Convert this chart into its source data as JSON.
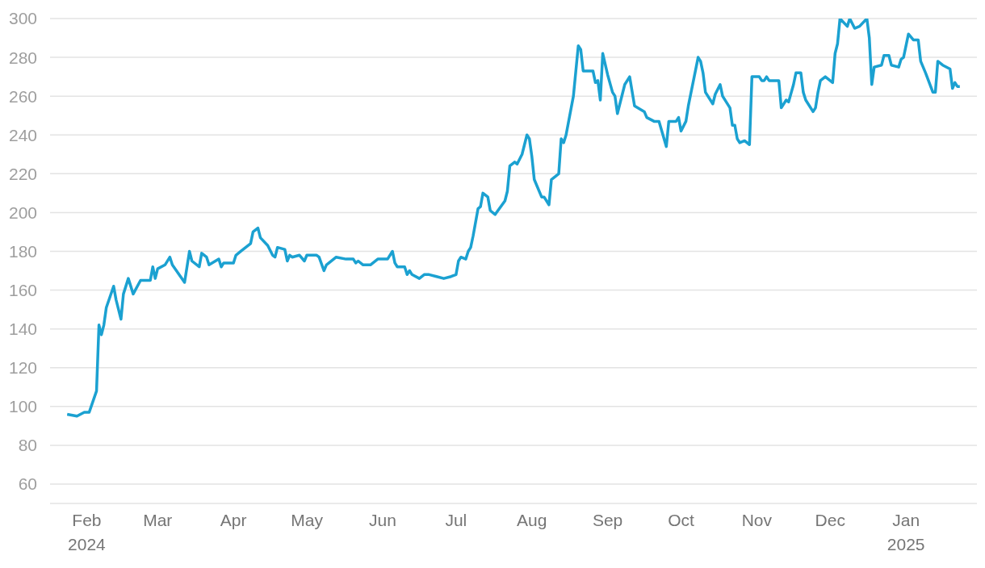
{
  "chart_data": {
    "type": "line",
    "x": [
      "2024-01-24",
      "2024-01-28",
      "2024-01-31",
      "2024-02-02",
      "2024-02-05",
      "2024-02-06",
      "2024-02-07",
      "2024-02-08",
      "2024-02-09",
      "2024-02-12",
      "2024-02-13",
      "2024-02-15",
      "2024-02-16",
      "2024-02-18",
      "2024-02-20",
      "2024-02-23",
      "2024-02-27",
      "2024-02-28",
      "2024-02-29",
      "2024-03-01",
      "2024-03-04",
      "2024-03-06",
      "2024-03-07",
      "2024-03-12",
      "2024-03-14",
      "2024-03-15",
      "2024-03-18",
      "2024-03-19",
      "2024-03-21",
      "2024-03-22",
      "2024-03-26",
      "2024-03-27",
      "2024-03-28",
      "2024-04-01",
      "2024-04-02",
      "2024-04-04",
      "2024-04-08",
      "2024-04-09",
      "2024-04-11",
      "2024-04-12",
      "2024-04-15",
      "2024-04-17",
      "2024-04-18",
      "2024-04-19",
      "2024-04-22",
      "2024-04-23",
      "2024-04-24",
      "2024-04-25",
      "2024-04-28",
      "2024-04-30",
      "2024-05-01",
      "2024-05-05",
      "2024-05-06",
      "2024-05-08",
      "2024-05-09",
      "2024-05-13",
      "2024-05-17",
      "2024-05-20",
      "2024-05-21",
      "2024-05-22",
      "2024-05-24",
      "2024-05-27",
      "2024-05-30",
      "2024-06-03",
      "2024-06-05",
      "2024-06-06",
      "2024-06-07",
      "2024-06-10",
      "2024-06-11",
      "2024-06-12",
      "2024-06-13",
      "2024-06-16",
      "2024-06-18",
      "2024-06-20",
      "2024-06-23",
      "2024-06-26",
      "2024-06-29",
      "2024-07-01",
      "2024-07-02",
      "2024-07-03",
      "2024-07-05",
      "2024-07-06",
      "2024-07-07",
      "2024-07-08",
      "2024-07-10",
      "2024-07-11",
      "2024-07-12",
      "2024-07-14",
      "2024-07-15",
      "2024-07-17",
      "2024-07-21",
      "2024-07-22",
      "2024-07-23",
      "2024-07-25",
      "2024-07-26",
      "2024-07-28",
      "2024-07-30",
      "2024-07-31",
      "2024-08-01",
      "2024-08-02",
      "2024-08-05",
      "2024-08-06",
      "2024-08-08",
      "2024-08-09",
      "2024-08-12",
      "2024-08-13",
      "2024-08-14",
      "2024-08-15",
      "2024-08-18",
      "2024-08-20",
      "2024-08-21",
      "2024-08-22",
      "2024-08-26",
      "2024-08-27",
      "2024-08-28",
      "2024-08-29",
      "2024-08-30",
      "2024-09-01",
      "2024-09-03",
      "2024-09-04",
      "2024-09-05",
      "2024-09-08",
      "2024-09-10",
      "2024-09-12",
      "2024-09-16",
      "2024-09-17",
      "2024-09-20",
      "2024-09-22",
      "2024-09-25",
      "2024-09-26",
      "2024-09-29",
      "2024-09-30",
      "2024-10-01",
      "2024-10-03",
      "2024-10-04",
      "2024-10-08",
      "2024-10-09",
      "2024-10-10",
      "2024-10-11",
      "2024-10-14",
      "2024-10-15",
      "2024-10-17",
      "2024-10-18",
      "2024-10-21",
      "2024-10-22",
      "2024-10-23",
      "2024-10-24",
      "2024-10-25",
      "2024-10-27",
      "2024-10-29",
      "2024-10-30",
      "2024-11-02",
      "2024-11-03",
      "2024-11-04",
      "2024-11-05",
      "2024-11-06",
      "2024-11-10",
      "2024-11-11",
      "2024-11-13",
      "2024-11-14",
      "2024-11-16",
      "2024-11-17",
      "2024-11-19",
      "2024-11-20",
      "2024-11-21",
      "2024-11-24",
      "2024-11-25",
      "2024-11-26",
      "2024-11-27",
      "2024-11-29",
      "2024-12-02",
      "2024-12-03",
      "2024-12-04",
      "2024-12-05",
      "2024-12-08",
      "2024-12-09",
      "2024-12-11",
      "2024-12-13",
      "2024-12-16",
      "2024-12-17",
      "2024-12-18",
      "2024-12-19",
      "2024-12-22",
      "2024-12-23",
      "2024-12-25",
      "2024-12-26",
      "2024-12-29",
      "2024-12-30",
      "2024-12-31",
      "2025-01-02",
      "2025-01-04",
      "2025-01-06",
      "2025-01-07",
      "2025-01-09",
      "2025-01-12",
      "2025-01-13",
      "2025-01-14",
      "2025-01-16",
      "2025-01-19",
      "2025-01-20",
      "2025-01-21",
      "2025-01-22",
      "2025-01-23"
    ],
    "series": [
      {
        "color": "#1ba1d1",
        "values": [
          96,
          95,
          97,
          97,
          108,
          142,
          137,
          142,
          151,
          162,
          155,
          145,
          158,
          166,
          158,
          165,
          165,
          172,
          166,
          171,
          173,
          177,
          173,
          164,
          180,
          175,
          172,
          179,
          177,
          173,
          176,
          172,
          174,
          174,
          178,
          180,
          184,
          190,
          192,
          187,
          183,
          178,
          177,
          182,
          181,
          175,
          178,
          177,
          178,
          175,
          178,
          178,
          177,
          170,
          173,
          177,
          176,
          176,
          174,
          175,
          173,
          173,
          176,
          176,
          180,
          174,
          172,
          172,
          168,
          170,
          168,
          166,
          168,
          168,
          167,
          166,
          167,
          168,
          175,
          177,
          176,
          180,
          182,
          188,
          202,
          203,
          210,
          208,
          201,
          199,
          206,
          211,
          224,
          226,
          225,
          230,
          240,
          238,
          229,
          217,
          208,
          208,
          204,
          217,
          220,
          238,
          236,
          240,
          260,
          286,
          284,
          273,
          273,
          267,
          268,
          258,
          282,
          271,
          262,
          260,
          251,
          266,
          270,
          255,
          252,
          249,
          247,
          247,
          234,
          247,
          247,
          249,
          242,
          247,
          255,
          280,
          278,
          272,
          262,
          256,
          261,
          266,
          260,
          254,
          245,
          245,
          238,
          236,
          237,
          235,
          270,
          270,
          268,
          268,
          270,
          268,
          268,
          254,
          258,
          257,
          266,
          272,
          272,
          262,
          258,
          252,
          254,
          262,
          268,
          270,
          267,
          282,
          287,
          300,
          296,
          300,
          295,
          296,
          300,
          290,
          266,
          275,
          276,
          281,
          281,
          276,
          275,
          279,
          280,
          292,
          289,
          289,
          278,
          272,
          262,
          262,
          278,
          276,
          274,
          264,
          267,
          265,
          265
        ]
      }
    ],
    "xlim": [
      "2024-01-17",
      "2025-01-30"
    ],
    "xticks": [
      {
        "value": "2024-02-01",
        "label": "Feb\n2024"
      },
      {
        "value": "2024-03-01",
        "label": "Mar"
      },
      {
        "value": "2024-04-01",
        "label": "Apr"
      },
      {
        "value": "2024-05-01",
        "label": "May"
      },
      {
        "value": "2024-06-01",
        "label": "Jun"
      },
      {
        "value": "2024-07-01",
        "label": "Jul"
      },
      {
        "value": "2024-08-01",
        "label": "Aug"
      },
      {
        "value": "2024-09-01",
        "label": "Sep"
      },
      {
        "value": "2024-10-01",
        "label": "Oct"
      },
      {
        "value": "2024-11-01",
        "label": "Nov"
      },
      {
        "value": "2024-12-01",
        "label": "Dec"
      },
      {
        "value": "2025-01-01",
        "label": "Jan\n2025"
      }
    ],
    "ylim": [
      50,
      300
    ],
    "yticks": [
      60,
      80,
      100,
      120,
      140,
      160,
      180,
      200,
      220,
      240,
      260,
      280,
      300
    ],
    "grid": "y",
    "legend": false,
    "marker": "none",
    "line_style": "solid"
  }
}
